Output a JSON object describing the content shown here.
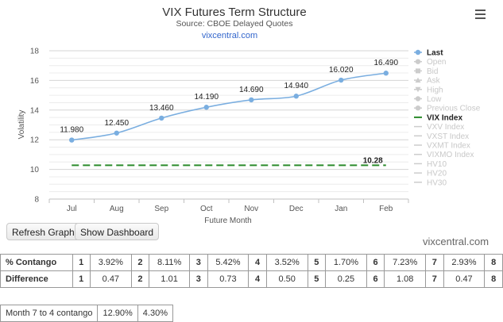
{
  "chart_data": {
    "type": "line",
    "title": "VIX Futures Term Structure",
    "subtitle": "Source: CBOE Delayed Quotes",
    "subtitle2": "vixcentral.com",
    "xlabel": "Future Month",
    "ylabel": "Volatility",
    "ylim": [
      8,
      18
    ],
    "yticks": [
      "8",
      "10",
      "12",
      "14",
      "16",
      "18"
    ],
    "categories": [
      "Jul",
      "Aug",
      "Sep",
      "Oct",
      "Nov",
      "Dec",
      "Jan",
      "Feb"
    ],
    "grid": true,
    "legend_position": "right",
    "series": [
      {
        "name": "Last",
        "color": "#7aaee0",
        "values": [
          11.98,
          12.45,
          13.46,
          14.19,
          14.69,
          14.94,
          16.02,
          16.49
        ],
        "labels": [
          "11.980",
          "12.450",
          "13.460",
          "14.190",
          "14.690",
          "14.940",
          "16.020",
          "16.490"
        ]
      },
      {
        "name": "VIX Index",
        "color": "#2a8a2a",
        "dashed": true,
        "value": 10.28,
        "label": "10.28"
      }
    ],
    "legend": [
      {
        "name": "Last",
        "active": true,
        "marker": "dot",
        "color": "#7aaee0"
      },
      {
        "name": "Open",
        "active": false,
        "marker": "dot"
      },
      {
        "name": "Bid",
        "active": false,
        "marker": "square"
      },
      {
        "name": "Ask",
        "active": false,
        "marker": "triangle"
      },
      {
        "name": "High",
        "active": false,
        "marker": "triangle-down"
      },
      {
        "name": "Low",
        "active": false,
        "marker": "dot"
      },
      {
        "name": "Previous Close",
        "active": false,
        "marker": "dot"
      },
      {
        "name": "VIX Index",
        "active": true,
        "marker": "line",
        "color": "#2a8a2a"
      },
      {
        "name": "VXV Index",
        "active": false,
        "marker": "line"
      },
      {
        "name": "VXST Index",
        "active": false,
        "marker": "line"
      },
      {
        "name": "VXMT Index",
        "active": false,
        "marker": "line"
      },
      {
        "name": "VIXMO Index",
        "active": false,
        "marker": "line"
      },
      {
        "name": "HV10",
        "active": false,
        "marker": "line"
      },
      {
        "name": "HV20",
        "active": false,
        "marker": "line"
      },
      {
        "name": "HV30",
        "active": false,
        "marker": "line"
      }
    ]
  },
  "buttons": {
    "refresh": "Refresh Graph",
    "dashboard": "Show Dashboard"
  },
  "brand": "vixcentral.com",
  "contango_table": {
    "label": "% Contango",
    "items": [
      {
        "idx": "1",
        "val": "3.92%"
      },
      {
        "idx": "2",
        "val": "8.11%"
      },
      {
        "idx": "3",
        "val": "5.42%"
      },
      {
        "idx": "4",
        "val": "3.52%"
      },
      {
        "idx": "5",
        "val": "1.70%"
      },
      {
        "idx": "6",
        "val": "7.23%"
      },
      {
        "idx": "7",
        "val": "2.93%"
      }
    ],
    "last_idx": "8"
  },
  "difference_table": {
    "label": "Difference",
    "items": [
      {
        "idx": "1",
        "val": "0.47"
      },
      {
        "idx": "2",
        "val": "1.01"
      },
      {
        "idx": "3",
        "val": "0.73"
      },
      {
        "idx": "4",
        "val": "0.50"
      },
      {
        "idx": "5",
        "val": "0.25"
      },
      {
        "idx": "6",
        "val": "1.08"
      },
      {
        "idx": "7",
        "val": "0.47"
      }
    ],
    "last_idx": "8"
  },
  "month_contango": {
    "label": "Month 7 to 4 contango",
    "values": [
      "12.90%",
      "4.30%"
    ]
  }
}
